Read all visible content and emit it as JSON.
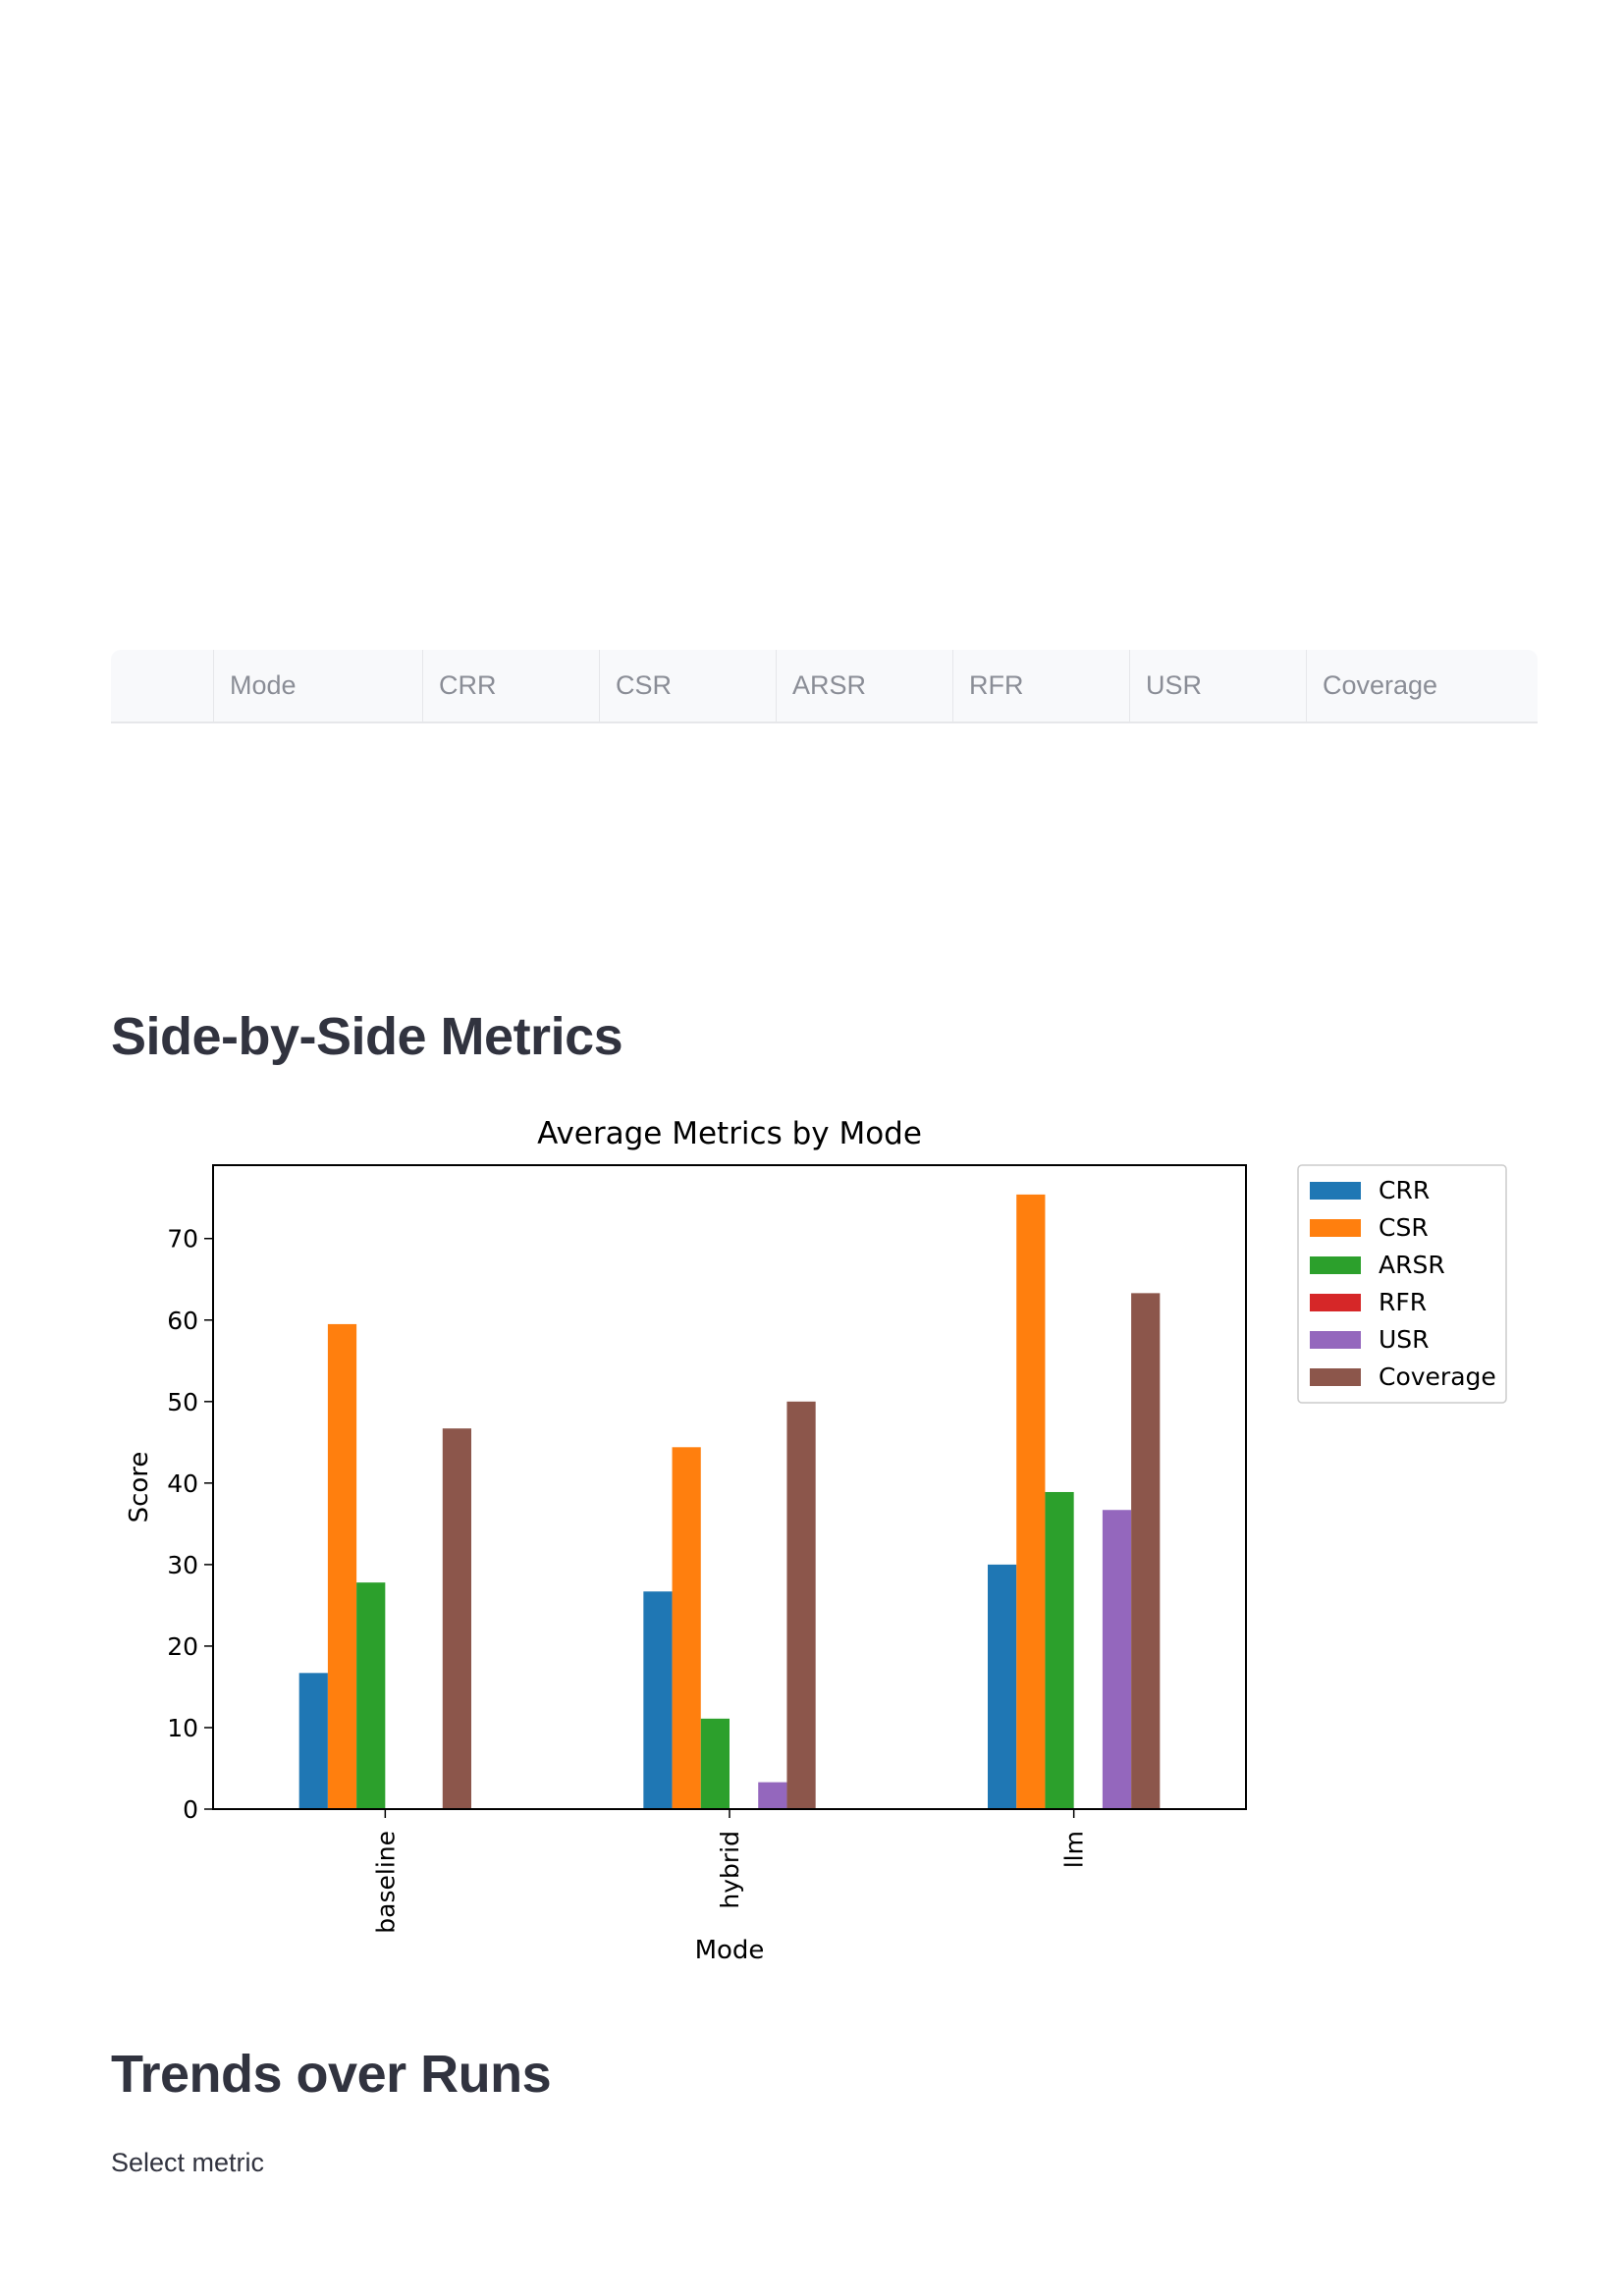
{
  "table": {
    "columns": [
      "",
      "Mode",
      "CRR",
      "CSR",
      "ARSR",
      "RFR",
      "USR",
      "Coverage"
    ]
  },
  "sections": {
    "side_by_side": "Side-by-Side Metrics",
    "trends": "Trends over Runs"
  },
  "trends_widget": {
    "label": "Select metric"
  },
  "chart_data": {
    "type": "bar",
    "title": "Average Metrics by Mode",
    "xlabel": "Mode",
    "ylabel": "Score",
    "categories": [
      "baseline",
      "hybrid",
      "llm"
    ],
    "ylim": [
      0,
      79
    ],
    "yticks": [
      0,
      10,
      20,
      30,
      40,
      50,
      60,
      70
    ],
    "legend_position": "outside-upper-right",
    "series": [
      {
        "name": "CRR",
        "color": "#1f77b4",
        "values": [
          16.7,
          26.7,
          30.0
        ]
      },
      {
        "name": "CSR",
        "color": "#ff7f0e",
        "values": [
          59.5,
          44.4,
          75.4
        ]
      },
      {
        "name": "ARSR",
        "color": "#2ca02c",
        "values": [
          27.8,
          11.1,
          38.9
        ]
      },
      {
        "name": "RFR",
        "color": "#d62728",
        "values": [
          0,
          0,
          0
        ]
      },
      {
        "name": "USR",
        "color": "#9467bd",
        "values": [
          0,
          3.3,
          36.7
        ]
      },
      {
        "name": "Coverage",
        "color": "#8c564b",
        "values": [
          46.7,
          50.0,
          63.3
        ]
      }
    ]
  }
}
